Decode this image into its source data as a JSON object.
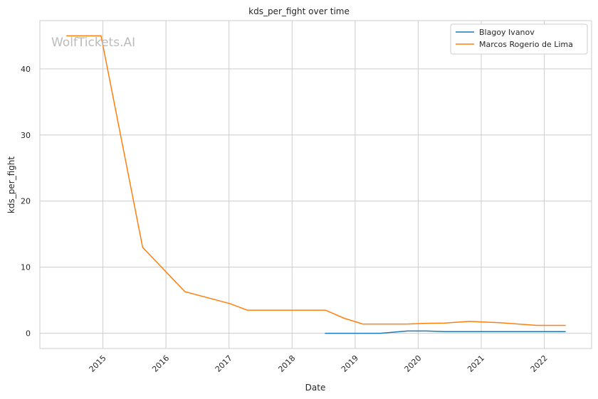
{
  "chart_data": {
    "type": "line",
    "title": "kds_per_fight over time",
    "xlabel": "Date",
    "ylabel": "kds_per_fight",
    "watermark": "WolfTickets.AI",
    "xlim": [
      2014.0,
      2022.75
    ],
    "ylim": [
      -2.3,
      47.3
    ],
    "xticks": [
      2015,
      2016,
      2017,
      2018,
      2019,
      2020,
      2021,
      2022
    ],
    "yticks": [
      0,
      10,
      20,
      30,
      40
    ],
    "grid": true,
    "legend_position": "top-right",
    "series": [
      {
        "name": "Blagoy Ivanov",
        "color": "#1f77b4",
        "x": [
          2018.52,
          2019.4,
          2019.83,
          2020.13,
          2020.42,
          2022.34
        ],
        "y": [
          0,
          0,
          0.35,
          0.35,
          0.25,
          0.25
        ]
      },
      {
        "name": "Marcos Rogerio de Lima",
        "color": "#ff7f0e",
        "x": [
          2014.42,
          2014.97,
          2015.63,
          2016.3,
          2017.01,
          2017.29,
          2018.53,
          2018.82,
          2019.12,
          2019.82,
          2020.1,
          2020.42,
          2020.81,
          2021.3,
          2021.88,
          2022.34
        ],
        "y": [
          45,
          45,
          13,
          6.3,
          4.5,
          3.5,
          3.5,
          2.3,
          1.4,
          1.4,
          1.5,
          1.55,
          1.8,
          1.6,
          1.2,
          1.2
        ]
      }
    ]
  }
}
